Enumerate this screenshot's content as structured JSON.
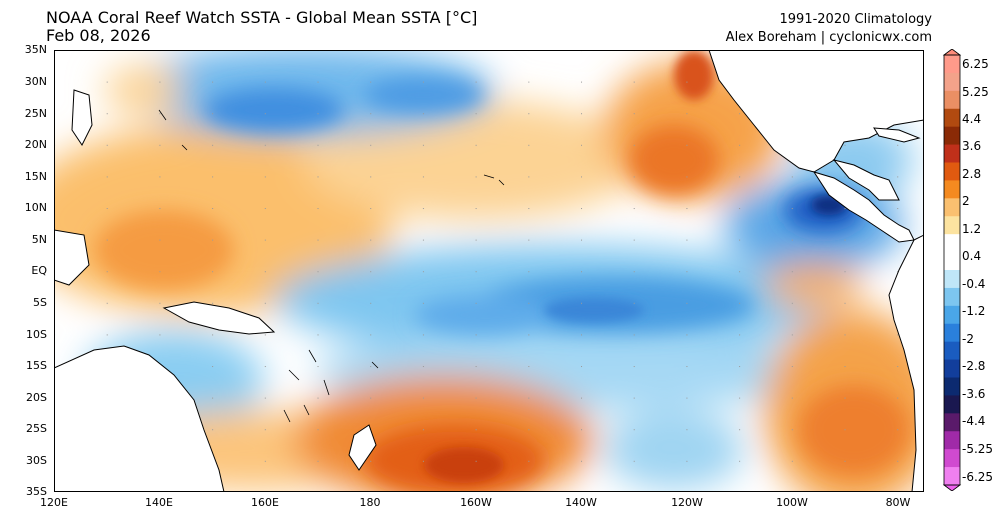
{
  "header": {
    "title": "NOAA Coral Reef Watch SSTA - Global Mean SSTA [°C]",
    "date": "Feb 08, 2026",
    "climatology": "1991-2020 Climatology",
    "credit": "Alex Boreham | cyclonicwx.com"
  },
  "map": {
    "extent": {
      "lon_min": 120,
      "lon_max": 285,
      "lat_min": -35,
      "lat_max": 35
    },
    "lat_labels": [
      "35N",
      "30N",
      "25N",
      "20N",
      "15N",
      "10N",
      "5N",
      "EQ",
      "5S",
      "10S",
      "15S",
      "20S",
      "25S",
      "30S",
      "35S"
    ],
    "lon_labels": [
      "120E",
      "140E",
      "160E",
      "180",
      "160W",
      "140W",
      "120W",
      "100W",
      "80W"
    ],
    "features": [
      {
        "name": "sw-pacific-warm-anomaly",
        "value": 3.0
      },
      {
        "name": "ne-pacific-warm-anomaly",
        "value": 2.6
      },
      {
        "name": "se-pacific-warm-anomaly",
        "value": 2.2
      },
      {
        "name": "equatorial-cool-tongue",
        "value": -1.6
      },
      {
        "name": "panama-bight-cold-anomaly",
        "value": -3.2
      },
      {
        "name": "nw-pacific-cool-anomaly",
        "value": -1.3
      },
      {
        "name": "w-pacific-warm-band",
        "value": 1.0
      }
    ]
  },
  "colorbar": {
    "labels": [
      "6.25",
      "5.25",
      "4.4",
      "3.6",
      "2.8",
      "2",
      "1.2",
      "0.4",
      "-0.4",
      "-1.2",
      "-2",
      "-2.8",
      "-3.6",
      "-4.4",
      "-5.25",
      "-6.25"
    ],
    "colors": [
      "#ff9a8a",
      "#f3a28a",
      "#ea8f64",
      "#b14a10",
      "#8a2a06",
      "#c0301a",
      "#e05a10",
      "#f48a20",
      "#fac070",
      "#fce3a0",
      "#ffffff",
      "#ffffff",
      "#bfe6f8",
      "#7dc6f0",
      "#4aa6e8",
      "#2a80dc",
      "#1a5cc0",
      "#123e9c",
      "#0c2a70",
      "#1a1850",
      "#5a1a6a",
      "#a02aa8",
      "#d04ad0",
      "#f080f0"
    ]
  }
}
